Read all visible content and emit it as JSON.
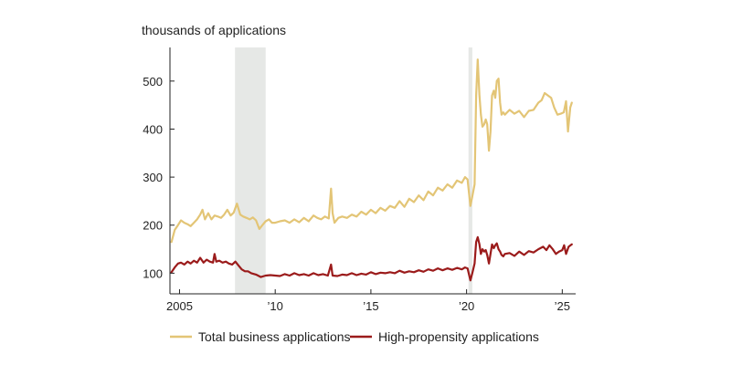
{
  "chart_data": {
    "type": "line",
    "ylabel": "thousands of applications",
    "xlim": [
      2004.5,
      2025.7
    ],
    "ylim": [
      57,
      570
    ],
    "x_ticks": [
      {
        "value": 2005,
        "label": "2005"
      },
      {
        "value": 2010,
        "label": "’10"
      },
      {
        "value": 2015,
        "label": "’15"
      },
      {
        "value": 2020,
        "label": "’20"
      },
      {
        "value": 2025,
        "label": "’25"
      }
    ],
    "y_ticks": [
      {
        "value": 100,
        "label": "100"
      },
      {
        "value": 200,
        "label": "200"
      },
      {
        "value": 300,
        "label": "300"
      },
      {
        "value": 400,
        "label": "400"
      },
      {
        "value": 500,
        "label": "500"
      }
    ],
    "recessions": [
      {
        "start": 2007.9,
        "end": 2009.5
      },
      {
        "start": 2020.1,
        "end": 2020.3
      }
    ],
    "series": [
      {
        "name": "Total business applications",
        "color": "#e3c576",
        "points": [
          [
            2004.58,
            165
          ],
          [
            2004.75,
            190
          ],
          [
            2004.92,
            200
          ],
          [
            2005.08,
            210
          ],
          [
            2005.25,
            205
          ],
          [
            2005.42,
            202
          ],
          [
            2005.58,
            198
          ],
          [
            2005.75,
            205
          ],
          [
            2005.92,
            212
          ],
          [
            2006.08,
            222
          ],
          [
            2006.2,
            232
          ],
          [
            2006.33,
            212
          ],
          [
            2006.5,
            225
          ],
          [
            2006.67,
            212
          ],
          [
            2006.83,
            220
          ],
          [
            2007.0,
            218
          ],
          [
            2007.17,
            215
          ],
          [
            2007.33,
            222
          ],
          [
            2007.5,
            232
          ],
          [
            2007.67,
            220
          ],
          [
            2007.83,
            226
          ],
          [
            2008.0,
            245
          ],
          [
            2008.17,
            222
          ],
          [
            2008.33,
            218
          ],
          [
            2008.5,
            215
          ],
          [
            2008.67,
            212
          ],
          [
            2008.83,
            216
          ],
          [
            2009.0,
            210
          ],
          [
            2009.17,
            192
          ],
          [
            2009.33,
            200
          ],
          [
            2009.5,
            208
          ],
          [
            2009.67,
            212
          ],
          [
            2009.83,
            205
          ],
          [
            2010.0,
            205
          ],
          [
            2010.25,
            208
          ],
          [
            2010.5,
            210
          ],
          [
            2010.75,
            205
          ],
          [
            2011.0,
            212
          ],
          [
            2011.25,
            206
          ],
          [
            2011.5,
            215
          ],
          [
            2011.75,
            208
          ],
          [
            2012.0,
            220
          ],
          [
            2012.2,
            215
          ],
          [
            2012.4,
            212
          ],
          [
            2012.6,
            218
          ],
          [
            2012.8,
            214
          ],
          [
            2012.92,
            276
          ],
          [
            2013.0,
            225
          ],
          [
            2013.1,
            205
          ],
          [
            2013.3,
            215
          ],
          [
            2013.5,
            218
          ],
          [
            2013.75,
            215
          ],
          [
            2014.0,
            222
          ],
          [
            2014.25,
            218
          ],
          [
            2014.5,
            228
          ],
          [
            2014.75,
            222
          ],
          [
            2015.0,
            232
          ],
          [
            2015.25,
            225
          ],
          [
            2015.5,
            236
          ],
          [
            2015.75,
            230
          ],
          [
            2016.0,
            240
          ],
          [
            2016.25,
            236
          ],
          [
            2016.5,
            250
          ],
          [
            2016.75,
            238
          ],
          [
            2017.0,
            255
          ],
          [
            2017.25,
            248
          ],
          [
            2017.5,
            262
          ],
          [
            2017.75,
            252
          ],
          [
            2018.0,
            270
          ],
          [
            2018.25,
            262
          ],
          [
            2018.5,
            278
          ],
          [
            2018.75,
            272
          ],
          [
            2019.0,
            285
          ],
          [
            2019.25,
            278
          ],
          [
            2019.5,
            293
          ],
          [
            2019.75,
            288
          ],
          [
            2019.92,
            300
          ],
          [
            2020.05,
            295
          ],
          [
            2020.2,
            240
          ],
          [
            2020.3,
            260
          ],
          [
            2020.42,
            285
          ],
          [
            2020.5,
            470
          ],
          [
            2020.58,
            545
          ],
          [
            2020.67,
            470
          ],
          [
            2020.75,
            430
          ],
          [
            2020.83,
            405
          ],
          [
            2020.92,
            410
          ],
          [
            2021.0,
            420
          ],
          [
            2021.08,
            410
          ],
          [
            2021.17,
            355
          ],
          [
            2021.25,
            395
          ],
          [
            2021.33,
            470
          ],
          [
            2021.42,
            480
          ],
          [
            2021.5,
            465
          ],
          [
            2021.58,
            500
          ],
          [
            2021.67,
            505
          ],
          [
            2021.75,
            455
          ],
          [
            2021.83,
            430
          ],
          [
            2021.92,
            435
          ],
          [
            2022.0,
            430
          ],
          [
            2022.25,
            440
          ],
          [
            2022.5,
            432
          ],
          [
            2022.75,
            438
          ],
          [
            2023.0,
            425
          ],
          [
            2023.25,
            438
          ],
          [
            2023.5,
            440
          ],
          [
            2023.75,
            455
          ],
          [
            2023.92,
            460
          ],
          [
            2024.08,
            475
          ],
          [
            2024.25,
            470
          ],
          [
            2024.42,
            465
          ],
          [
            2024.58,
            445
          ],
          [
            2024.75,
            430
          ],
          [
            2024.92,
            432
          ],
          [
            2025.08,
            435
          ],
          [
            2025.2,
            458
          ],
          [
            2025.3,
            395
          ],
          [
            2025.42,
            445
          ],
          [
            2025.5,
            455
          ]
        ]
      },
      {
        "name": "High-propensity applications",
        "color": "#9b1b1b",
        "points": [
          [
            2004.58,
            102
          ],
          [
            2004.75,
            112
          ],
          [
            2004.92,
            120
          ],
          [
            2005.08,
            122
          ],
          [
            2005.25,
            118
          ],
          [
            2005.42,
            124
          ],
          [
            2005.58,
            120
          ],
          [
            2005.75,
            126
          ],
          [
            2005.92,
            122
          ],
          [
            2006.08,
            132
          ],
          [
            2006.25,
            122
          ],
          [
            2006.42,
            128
          ],
          [
            2006.58,
            124
          ],
          [
            2006.75,
            122
          ],
          [
            2006.83,
            140
          ],
          [
            2006.92,
            124
          ],
          [
            2007.08,
            126
          ],
          [
            2007.25,
            122
          ],
          [
            2007.42,
            124
          ],
          [
            2007.58,
            120
          ],
          [
            2007.75,
            118
          ],
          [
            2007.92,
            124
          ],
          [
            2008.08,
            116
          ],
          [
            2008.25,
            108
          ],
          [
            2008.42,
            104
          ],
          [
            2008.58,
            104
          ],
          [
            2008.75,
            100
          ],
          [
            2009.0,
            97
          ],
          [
            2009.25,
            92
          ],
          [
            2009.5,
            95
          ],
          [
            2009.75,
            96
          ],
          [
            2010.0,
            95
          ],
          [
            2010.25,
            94
          ],
          [
            2010.5,
            98
          ],
          [
            2010.75,
            95
          ],
          [
            2011.0,
            100
          ],
          [
            2011.25,
            96
          ],
          [
            2011.5,
            98
          ],
          [
            2011.75,
            95
          ],
          [
            2012.0,
            100
          ],
          [
            2012.25,
            96
          ],
          [
            2012.5,
            98
          ],
          [
            2012.75,
            95
          ],
          [
            2012.92,
            118
          ],
          [
            2013.0,
            95
          ],
          [
            2013.25,
            94
          ],
          [
            2013.5,
            97
          ],
          [
            2013.75,
            96
          ],
          [
            2014.0,
            100
          ],
          [
            2014.25,
            96
          ],
          [
            2014.5,
            99
          ],
          [
            2014.75,
            97
          ],
          [
            2015.0,
            102
          ],
          [
            2015.25,
            98
          ],
          [
            2015.5,
            101
          ],
          [
            2015.75,
            100
          ],
          [
            2016.0,
            102
          ],
          [
            2016.25,
            100
          ],
          [
            2016.5,
            105
          ],
          [
            2016.75,
            101
          ],
          [
            2017.0,
            104
          ],
          [
            2017.25,
            102
          ],
          [
            2017.5,
            106
          ],
          [
            2017.75,
            103
          ],
          [
            2018.0,
            108
          ],
          [
            2018.25,
            105
          ],
          [
            2018.5,
            110
          ],
          [
            2018.75,
            106
          ],
          [
            2019.0,
            110
          ],
          [
            2019.25,
            107
          ],
          [
            2019.5,
            111
          ],
          [
            2019.75,
            108
          ],
          [
            2019.92,
            112
          ],
          [
            2020.05,
            110
          ],
          [
            2020.2,
            85
          ],
          [
            2020.3,
            100
          ],
          [
            2020.42,
            120
          ],
          [
            2020.5,
            165
          ],
          [
            2020.58,
            175
          ],
          [
            2020.67,
            160
          ],
          [
            2020.75,
            140
          ],
          [
            2020.83,
            150
          ],
          [
            2020.92,
            145
          ],
          [
            2021.0,
            148
          ],
          [
            2021.08,
            138
          ],
          [
            2021.17,
            120
          ],
          [
            2021.25,
            140
          ],
          [
            2021.33,
            160
          ],
          [
            2021.42,
            152
          ],
          [
            2021.5,
            158
          ],
          [
            2021.58,
            162
          ],
          [
            2021.67,
            150
          ],
          [
            2021.75,
            145
          ],
          [
            2021.83,
            138
          ],
          [
            2021.92,
            135
          ],
          [
            2022.0,
            140
          ],
          [
            2022.25,
            142
          ],
          [
            2022.5,
            136
          ],
          [
            2022.75,
            145
          ],
          [
            2023.0,
            138
          ],
          [
            2023.25,
            146
          ],
          [
            2023.5,
            143
          ],
          [
            2023.75,
            150
          ],
          [
            2024.0,
            155
          ],
          [
            2024.17,
            148
          ],
          [
            2024.33,
            158
          ],
          [
            2024.5,
            150
          ],
          [
            2024.67,
            140
          ],
          [
            2024.83,
            145
          ],
          [
            2025.0,
            148
          ],
          [
            2025.1,
            158
          ],
          [
            2025.2,
            140
          ],
          [
            2025.33,
            155
          ],
          [
            2025.5,
            160
          ]
        ]
      }
    ]
  }
}
